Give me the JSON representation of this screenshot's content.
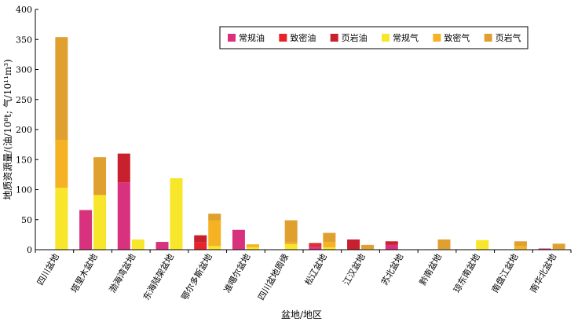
{
  "chart_data": {
    "type": "bar",
    "stacked": true,
    "title": "",
    "xlabel": "盆地/地区",
    "ylabel": "地质资源量/(油/10⁸t; 气/10¹¹m³)",
    "ylim": [
      0,
      400
    ],
    "yticks": [
      0,
      50,
      100,
      150,
      200,
      250,
      300,
      350,
      400
    ],
    "grid": false,
    "legend_position": "top-right",
    "categories": [
      "四川盆地",
      "塔里木盆地",
      "渤海湾盆地",
      "东海陆架盆地",
      "鄂尔多斯盆地",
      "准噶尔盆地",
      "四川盆地周缘",
      "松辽盆地",
      "江汉盆地",
      "苏北盆地",
      "黔南盆地",
      "琼东南盆地",
      "南盘江盆地",
      "南华北盆地"
    ],
    "groups": [
      {
        "name": "oil",
        "series": [
          "常规油",
          "致密油",
          "页岩油"
        ]
      },
      {
        "name": "gas",
        "series": [
          "常规气",
          "致密气",
          "页岩气"
        ]
      }
    ],
    "series": [
      {
        "name": "常规油",
        "group": "oil",
        "color": "#d8327f",
        "values": [
          0,
          66,
          112,
          13,
          0,
          33,
          0,
          5,
          0,
          8,
          0,
          0,
          0,
          2
        ]
      },
      {
        "name": "致密油",
        "group": "oil",
        "color": "#e8242a",
        "values": [
          0,
          0,
          0,
          0,
          12,
          0,
          0,
          4,
          0,
          0,
          0,
          0,
          0,
          0
        ]
      },
      {
        "name": "页岩油",
        "group": "oil",
        "color": "#c8202d",
        "values": [
          0,
          0,
          48,
          0,
          12,
          0,
          0,
          2,
          17,
          6,
          0,
          0,
          0,
          0
        ]
      },
      {
        "name": "常规气",
        "group": "gas",
        "color": "#f7e629",
        "values": [
          103,
          91,
          17,
          119,
          6,
          4,
          9,
          4,
          1,
          0,
          1,
          16,
          1,
          1
        ]
      },
      {
        "name": "致密气",
        "group": "gas",
        "color": "#f5b323",
        "values": [
          80,
          0,
          0,
          0,
          43,
          5,
          3,
          9,
          0,
          0,
          0,
          0,
          5,
          0
        ]
      },
      {
        "name": "页岩气",
        "group": "gas",
        "color": "#e0a030",
        "values": [
          171,
          63,
          0,
          0,
          11,
          0,
          37,
          15,
          7,
          0,
          16,
          0,
          8,
          9
        ]
      }
    ]
  }
}
